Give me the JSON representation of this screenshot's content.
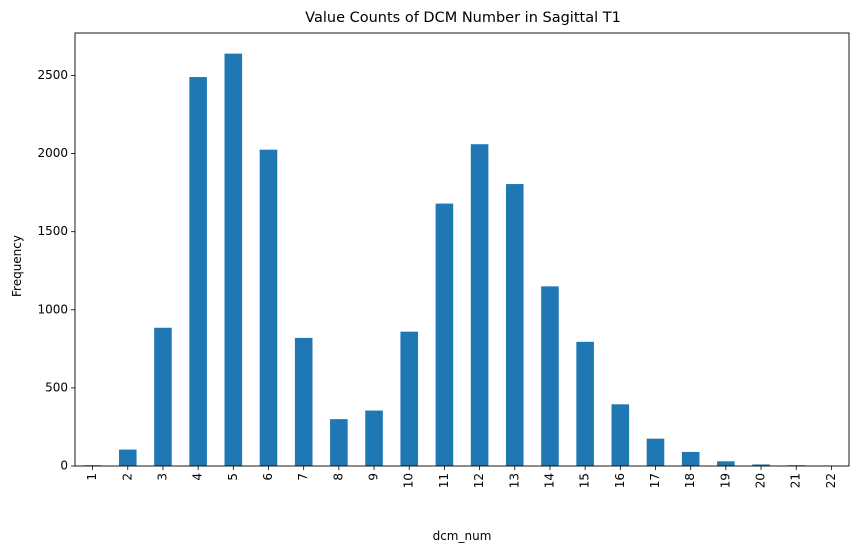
{
  "chart_data": {
    "type": "bar",
    "title": "Value Counts of DCM Number in Sagittal T1",
    "xlabel": "dcm_num",
    "ylabel": "Frequency",
    "categories": [
      "1",
      "2",
      "3",
      "4",
      "5",
      "6",
      "7",
      "8",
      "9",
      "10",
      "11",
      "12",
      "13",
      "14",
      "15",
      "16",
      "17",
      "18",
      "19",
      "20",
      "21",
      "22"
    ],
    "values": [
      5,
      105,
      885,
      2490,
      2640,
      2025,
      820,
      300,
      355,
      860,
      1680,
      2060,
      1805,
      1150,
      795,
      395,
      175,
      90,
      30,
      10,
      5,
      2
    ],
    "ylim": [
      0,
      2772
    ],
    "yticks": [
      0,
      500,
      1000,
      1500,
      2000,
      2500
    ],
    "bar_color": "#1f77b4",
    "grid": false,
    "legend": "none"
  }
}
